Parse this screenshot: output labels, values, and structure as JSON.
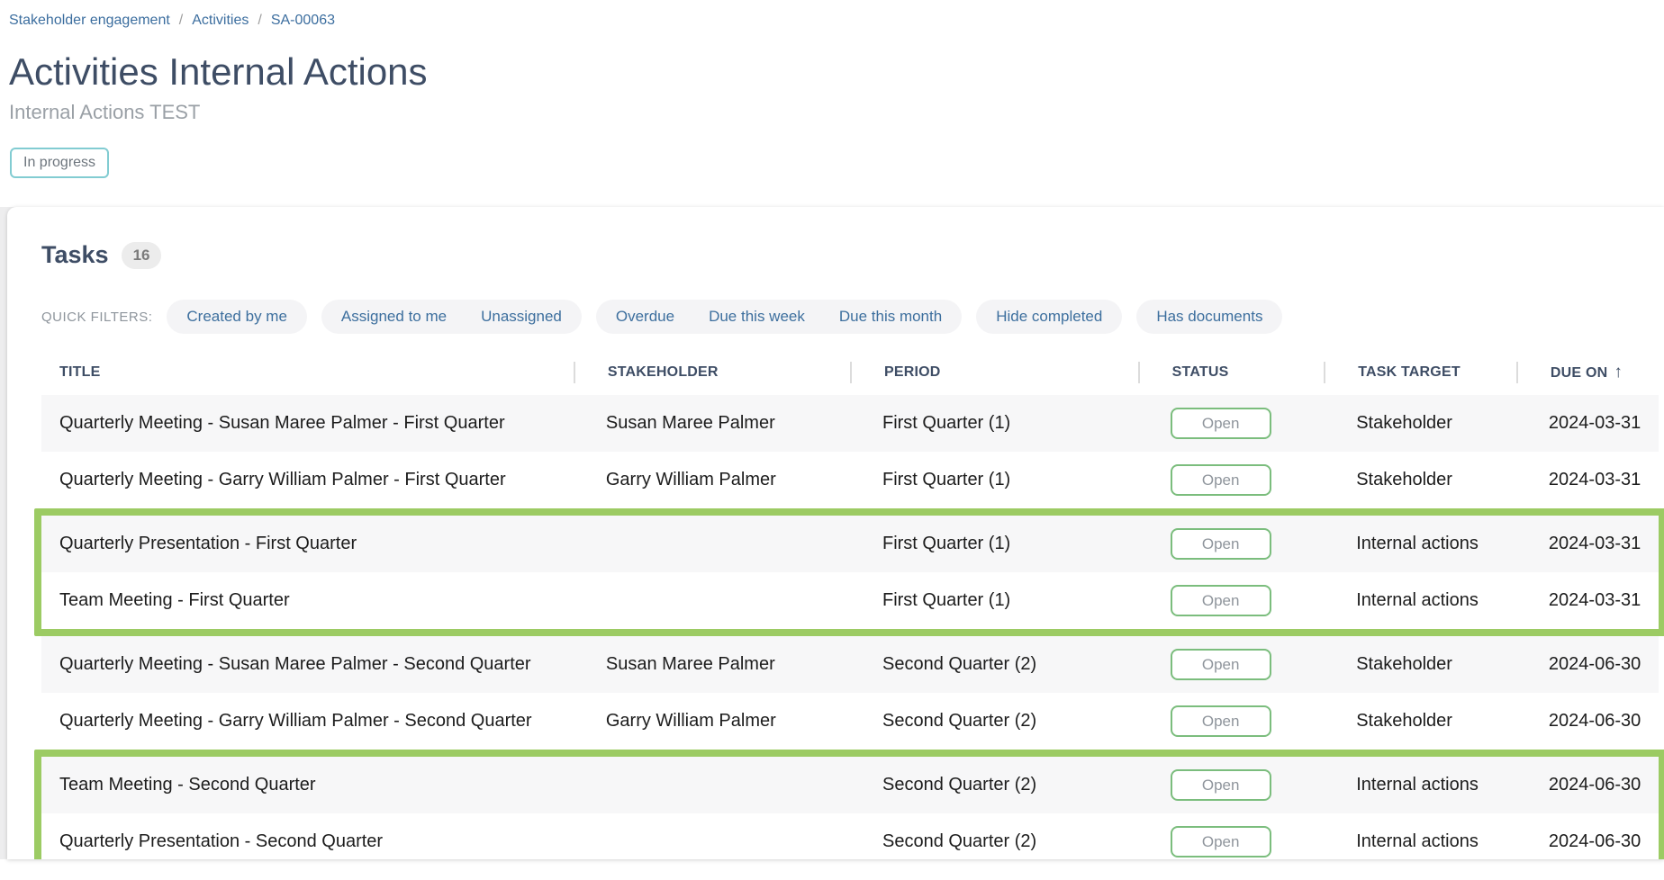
{
  "breadcrumb": {
    "items": [
      "Stakeholder engagement",
      "Activities",
      "SA-00063"
    ],
    "separator": "/"
  },
  "page": {
    "title": "Activities Internal Actions",
    "subtitle": "Internal Actions TEST",
    "status_chip": "In progress"
  },
  "tasks_card": {
    "heading": "Tasks",
    "count": "16",
    "quick_filters_label": "QUICK FILTERS:",
    "filter_groups": [
      [
        "Created by me"
      ],
      [
        "Assigned to me",
        "Unassigned"
      ],
      [
        "Overdue",
        "Due this week",
        "Due this month"
      ],
      [
        "Hide completed"
      ],
      [
        "Has documents"
      ]
    ]
  },
  "table": {
    "columns": [
      "TITLE",
      "STAKEHOLDER",
      "PERIOD",
      "STATUS",
      "TASK TARGET",
      "DUE ON"
    ],
    "sort_column": "DUE ON",
    "sort_icon": "↑",
    "rows": [
      {
        "title": "Quarterly Meeting - Susan Maree Palmer - First Quarter",
        "stakeholder": "Susan Maree Palmer",
        "period": "First Quarter (1)",
        "status": "Open",
        "task_target": "Stakeholder",
        "due_on": "2024-03-31",
        "highlight_group": null
      },
      {
        "title": "Quarterly Meeting - Garry William Palmer - First Quarter",
        "stakeholder": "Garry William Palmer",
        "period": "First Quarter (1)",
        "status": "Open",
        "task_target": "Stakeholder",
        "due_on": "2024-03-31",
        "highlight_group": null
      },
      {
        "title": "Quarterly Presentation - First Quarter",
        "stakeholder": "",
        "period": "First Quarter (1)",
        "status": "Open",
        "task_target": "Internal actions",
        "due_on": "2024-03-31",
        "highlight_group": 1
      },
      {
        "title": "Team Meeting - First Quarter",
        "stakeholder": "",
        "period": "First Quarter (1)",
        "status": "Open",
        "task_target": "Internal actions",
        "due_on": "2024-03-31",
        "highlight_group": 1
      },
      {
        "title": "Quarterly Meeting - Susan Maree Palmer - Second Quarter",
        "stakeholder": "Susan Maree Palmer",
        "period": "Second Quarter (2)",
        "status": "Open",
        "task_target": "Stakeholder",
        "due_on": "2024-06-30",
        "highlight_group": null
      },
      {
        "title": "Quarterly Meeting - Garry William Palmer - Second Quarter",
        "stakeholder": "Garry William Palmer",
        "period": "Second Quarter (2)",
        "status": "Open",
        "task_target": "Stakeholder",
        "due_on": "2024-06-30",
        "highlight_group": null
      },
      {
        "title": "Team Meeting - Second Quarter",
        "stakeholder": "",
        "period": "Second Quarter (2)",
        "status": "Open",
        "task_target": "Internal actions",
        "due_on": "2024-06-30",
        "highlight_group": 2
      },
      {
        "title": "Quarterly Presentation - Second Quarter",
        "stakeholder": "",
        "period": "Second Quarter (2)",
        "status": "Open",
        "task_target": "Internal actions",
        "due_on": "2024-06-30",
        "highlight_group": 2
      }
    ]
  },
  "colors": {
    "breadcrumb_link": "#3c6e9f",
    "heading_text": "#3e4d65",
    "subtitle_text": "#9aa0a6",
    "status_chip_border": "#82ccd2",
    "filter_pill_bg": "#f4f4f6",
    "filter_text": "#3d6f9e",
    "row_stripe_bg": "#f7f7f8",
    "open_badge_border": "#7bbd7d",
    "open_badge_text": "#8f959c",
    "highlight_border": "#9ccb63"
  }
}
